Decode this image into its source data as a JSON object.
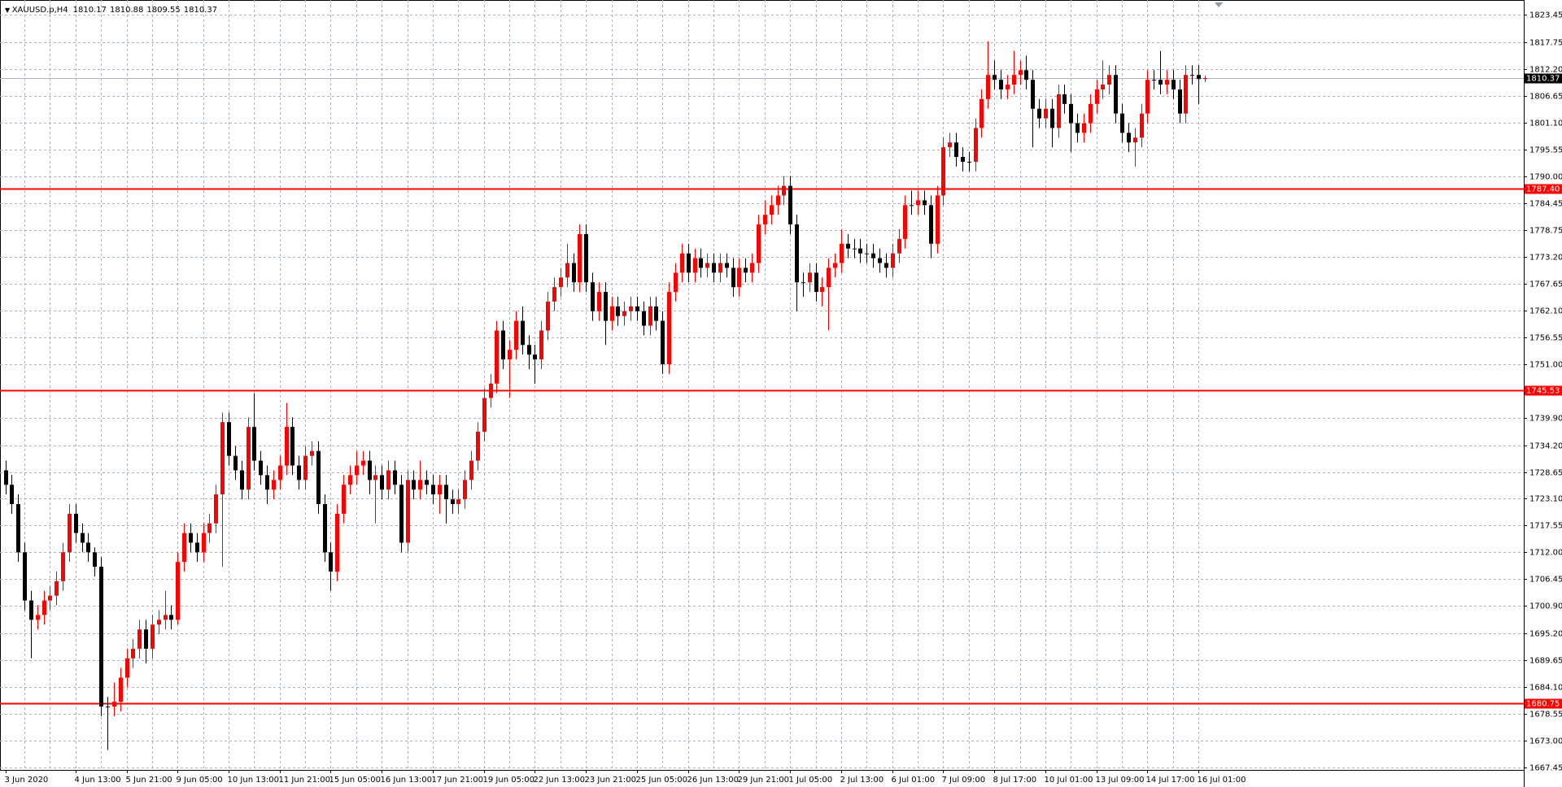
{
  "chart_data": {
    "type": "candlestick",
    "symbol": "XAUUSD.p,H4",
    "up_color": "#ff0000",
    "down_color": "#000000",
    "ylim": [
      1666.86,
      1826.55
    ],
    "yticks": [
      1823.45,
      1817.75,
      {
        "value": 1812.2,
        "label": "1812.20"
      },
      1806.65,
      {
        "value": 1801.1,
        "label": "1801.10"
      },
      1795.55,
      {
        "value": 1790,
        "label": "1790.00"
      },
      1784.45,
      1778.75,
      {
        "value": 1773.2,
        "label": "1773.20"
      },
      1767.65,
      {
        "value": 1762.1,
        "label": "1762.10"
      },
      1756.55,
      {
        "value": 1751,
        "label": "1751.00"
      },
      {
        "value": 1739.9,
        "label": "1739.90"
      },
      {
        "value": 1734.2,
        "label": "1734.20"
      },
      1728.65,
      {
        "value": 1723.1,
        "label": "1723.10"
      },
      1717.55,
      {
        "value": 1712,
        "label": "1712.00"
      },
      1706.45,
      {
        "value": 1700.9,
        "label": "1700.90"
      },
      {
        "value": 1695.2,
        "label": "1695.20"
      },
      1689.65,
      {
        "value": 1684.1,
        "label": "1684.10"
      },
      1678.55,
      {
        "value": 1673,
        "label": "1673.00"
      },
      1667.45
    ],
    "grid": true,
    "levels": [
      {
        "value": 1787.4,
        "label": "1787.40"
      },
      1745.53,
      1680.75
    ],
    "level_color": "#ff0000",
    "categories": [
      "3 Jun 2020",
      null,
      null,
      null,
      null,
      null,
      null,
      null,
      null,
      null,
      null,
      "4 Jun 13:00",
      null,
      null,
      null,
      null,
      null,
      null,
      null,
      "5 Jun 21:00",
      null,
      null,
      null,
      null,
      null,
      null,
      null,
      "9 Jun 05:00",
      null,
      null,
      null,
      null,
      null,
      null,
      null,
      "10 Jun 13:00",
      null,
      null,
      null,
      null,
      null,
      null,
      null,
      "11 Jun 21:00",
      null,
      null,
      null,
      null,
      null,
      null,
      null,
      "15 Jun 05:00",
      null,
      null,
      null,
      null,
      null,
      null,
      null,
      "16 Jun 13:00",
      null,
      null,
      null,
      null,
      null,
      null,
      null,
      "17 Jun 21:00",
      null,
      null,
      null,
      null,
      null,
      null,
      null,
      "19 Jun 05:00",
      null,
      null,
      null,
      null,
      null,
      null,
      null,
      "22 Jun 13:00",
      null,
      null,
      null,
      null,
      null,
      null,
      null,
      "23 Jun 21:00",
      null,
      null,
      null,
      null,
      null,
      null,
      null,
      "25 Jun 05:00",
      null,
      null,
      null,
      null,
      null,
      null,
      null,
      "26 Jun 13:00",
      null,
      null,
      null,
      null,
      null,
      null,
      null,
      "29 Jun 21:00",
      null,
      null,
      null,
      null,
      null,
      null,
      null,
      "1 Jul 05:00",
      null,
      null,
      null,
      null,
      null,
      null,
      null,
      "2 Jul 13:00",
      null,
      null,
      null,
      null,
      null,
      null,
      null,
      "6 Jul 01:00",
      null,
      null,
      null,
      null,
      null,
      null,
      null,
      "7 Jul 09:00",
      null,
      null,
      null,
      null,
      null,
      null,
      null,
      "8 Jul 17:00",
      null,
      null,
      null,
      null,
      null,
      null,
      null,
      "10 Jul 01:00",
      null,
      null,
      null,
      null,
      null,
      null,
      null,
      "13 Jul 09:00",
      null,
      null,
      null,
      null,
      null,
      null,
      null,
      "14 Jul 17:00",
      null,
      null,
      null,
      null,
      null,
      null,
      null,
      "16 Jul 01:00",
      null
    ],
    "candles": [
      [
        1729,
        1731,
        1724,
        1726
      ],
      [
        1726,
        1728,
        1720,
        1722
      ],
      [
        1722,
        1724,
        1710,
        1712
      ],
      [
        1712,
        1714,
        1700,
        1702
      ],
      [
        1702,
        1704,
        1690,
        1698
      ],
      [
        1698,
        1701,
        1696,
        1699
      ],
      [
        1699,
        1704,
        1697,
        1702
      ],
      [
        1702,
        1705,
        1700,
        1703
      ],
      [
        1703,
        1708,
        1701,
        1706
      ],
      [
        1706,
        1714,
        1704,
        1712
      ],
      [
        1712,
        1722,
        1710,
        1720
      ],
      [
        1720,
        1722,
        1714,
        1716
      ],
      [
        1716,
        1718,
        1712,
        1714
      ],
      [
        1714,
        1716,
        1710,
        1712
      ],
      [
        1712,
        1713,
        1707,
        1709
      ],
      [
        1709,
        1711,
        1678,
        1680
      ],
      [
        1680,
        1682,
        1671,
        1680
      ],
      [
        1680,
        1685,
        1678,
        1681
      ],
      [
        1681,
        1688,
        1679,
        1686
      ],
      [
        1686,
        1692,
        1684,
        1690
      ],
      [
        1690,
        1694,
        1688,
        1692
      ],
      [
        1692,
        1698,
        1690,
        1696
      ],
      [
        1696,
        1698,
        1689,
        1692
      ],
      [
        1692,
        1699,
        1690,
        1697
      ],
      [
        1697,
        1700,
        1695,
        1698
      ],
      [
        1698,
        1704,
        1696,
        1699
      ],
      [
        1699,
        1701,
        1696,
        1698
      ],
      [
        1698,
        1712,
        1697,
        1710
      ],
      [
        1710,
        1718,
        1708,
        1716
      ],
      [
        1716,
        1718,
        1712,
        1714
      ],
      [
        1714,
        1716,
        1710,
        1712
      ],
      [
        1712,
        1718,
        1710,
        1716
      ],
      [
        1716,
        1720,
        1714,
        1718
      ],
      [
        1718,
        1726,
        1716,
        1724
      ],
      [
        1724,
        1741,
        1709,
        1739
      ],
      [
        1739,
        1741,
        1730,
        1732
      ],
      [
        1732,
        1734,
        1727,
        1729
      ],
      [
        1729,
        1731,
        1723,
        1725
      ],
      [
        1725,
        1740,
        1723,
        1738
      ],
      [
        1738,
        1745,
        1729,
        1731
      ],
      [
        1731,
        1733,
        1726,
        1728
      ],
      [
        1728,
        1730,
        1722,
        1725
      ],
      [
        1725,
        1729,
        1723,
        1727
      ],
      [
        1727,
        1732,
        1725,
        1730
      ],
      [
        1730,
        1743,
        1728,
        1738
      ],
      [
        1738,
        1740,
        1728,
        1730
      ],
      [
        1730,
        1732,
        1725,
        1727
      ],
      [
        1727,
        1734,
        1725,
        1732
      ],
      [
        1732,
        1735,
        1730,
        1733
      ],
      [
        1733,
        1735,
        1720,
        1722
      ],
      [
        1722,
        1724,
        1710,
        1712
      ],
      [
        1712,
        1714,
        1704,
        1708
      ],
      [
        1708,
        1722,
        1706,
        1720
      ],
      [
        1720,
        1728,
        1718,
        1726
      ],
      [
        1726,
        1730,
        1724,
        1728
      ],
      [
        1728,
        1733,
        1726,
        1730
      ],
      [
        1730,
        1733,
        1728,
        1731
      ],
      [
        1731,
        1733,
        1724,
        1727
      ],
      [
        1727,
        1730,
        1718,
        1728
      ],
      [
        1728,
        1730,
        1723,
        1725
      ],
      [
        1725,
        1731,
        1723,
        1729
      ],
      [
        1729,
        1731,
        1724,
        1726
      ],
      [
        1726,
        1728,
        1712,
        1714
      ],
      [
        1714,
        1729,
        1712,
        1727
      ],
      [
        1727,
        1729,
        1723,
        1725
      ],
      [
        1725,
        1731,
        1723,
        1727
      ],
      [
        1727,
        1729,
        1724,
        1726
      ],
      [
        1726,
        1728,
        1722,
        1724
      ],
      [
        1724,
        1728,
        1720,
        1726
      ],
      [
        1726,
        1728,
        1718,
        1723
      ],
      [
        1723,
        1725,
        1720,
        1722
      ],
      [
        1722,
        1725,
        1720,
        1723
      ],
      [
        1723,
        1729,
        1721,
        1727
      ],
      [
        1727,
        1733,
        1725,
        1731
      ],
      [
        1731,
        1739,
        1729,
        1737
      ],
      [
        1737,
        1746,
        1735,
        1744
      ],
      [
        1744,
        1749,
        1742,
        1747
      ],
      [
        1747,
        1760,
        1745,
        1758
      ],
      [
        1758,
        1760,
        1750,
        1752
      ],
      [
        1752,
        1756,
        1744,
        1754
      ],
      [
        1754,
        1762,
        1752,
        1760
      ],
      [
        1760,
        1763,
        1753,
        1755
      ],
      [
        1755,
        1757,
        1750,
        1753
      ],
      [
        1753,
        1755,
        1747,
        1752
      ],
      [
        1752,
        1760,
        1750,
        1758
      ],
      [
        1758,
        1766,
        1756,
        1764
      ],
      [
        1764,
        1769,
        1762,
        1767
      ],
      [
        1767,
        1771,
        1765,
        1769
      ],
      [
        1769,
        1776,
        1767,
        1772
      ],
      [
        1772,
        1774,
        1766,
        1768
      ],
      [
        1768,
        1780,
        1766,
        1778
      ],
      [
        1778,
        1780,
        1766,
        1768
      ],
      [
        1768,
        1770,
        1760,
        1762
      ],
      [
        1762,
        1768,
        1760,
        1766
      ],
      [
        1766,
        1768,
        1755,
        1760
      ],
      [
        1760,
        1765,
        1758,
        1763
      ],
      [
        1763,
        1765,
        1759,
        1761
      ],
      [
        1761,
        1764,
        1759,
        1762
      ],
      [
        1762,
        1765,
        1760,
        1763
      ],
      [
        1763,
        1765,
        1760,
        1762
      ],
      [
        1762,
        1764,
        1757,
        1759
      ],
      [
        1759,
        1765,
        1757,
        1763
      ],
      [
        1763,
        1765,
        1758,
        1760
      ],
      [
        1760,
        1762,
        1749,
        1751
      ],
      [
        1751,
        1768,
        1749,
        1766
      ],
      [
        1766,
        1772,
        1764,
        1770
      ],
      [
        1770,
        1776,
        1768,
        1774
      ],
      [
        1774,
        1776,
        1768,
        1770
      ],
      [
        1770,
        1775,
        1768,
        1773
      ],
      [
        1773,
        1775,
        1769,
        1771
      ],
      [
        1771,
        1774,
        1769,
        1772
      ],
      [
        1772,
        1774,
        1768,
        1770
      ],
      [
        1770,
        1774,
        1768,
        1772
      ],
      [
        1772,
        1774,
        1769,
        1771
      ],
      [
        1771,
        1773,
        1765,
        1767
      ],
      [
        1767,
        1773,
        1765,
        1771
      ],
      [
        1771,
        1773,
        1768,
        1770
      ],
      [
        1770,
        1774,
        1768,
        1772
      ],
      [
        1772,
        1782,
        1770,
        1780
      ],
      [
        1780,
        1785,
        1778,
        1782
      ],
      [
        1782,
        1786,
        1780,
        1784
      ],
      [
        1784,
        1788,
        1782,
        1786
      ],
      [
        1786,
        1790,
        1784,
        1788
      ],
      [
        1788,
        1790,
        1778,
        1780
      ],
      [
        1780,
        1782,
        1762,
        1768
      ],
      [
        1768,
        1770,
        1765,
        1768
      ],
      [
        1768,
        1772,
        1766,
        1770
      ],
      [
        1770,
        1772,
        1764,
        1766
      ],
      [
        1766,
        1769,
        1763,
        1767
      ],
      [
        1767,
        1773,
        1758,
        1771
      ],
      [
        1771,
        1774,
        1769,
        1772
      ],
      [
        1772,
        1779,
        1770,
        1776
      ],
      [
        1776,
        1778,
        1773,
        1775
      ],
      [
        1775,
        1777,
        1773,
        1775
      ],
      [
        1775,
        1777,
        1772,
        1774
      ],
      [
        1774,
        1776,
        1772,
        1774
      ],
      [
        1774,
        1776,
        1771,
        1773
      ],
      [
        1773,
        1775,
        1770,
        1772
      ],
      [
        1772,
        1774,
        1769,
        1771
      ],
      [
        1771,
        1776,
        1769,
        1774
      ],
      [
        1774,
        1779,
        1772,
        1777
      ],
      [
        1777,
        1786,
        1775,
        1784
      ],
      [
        1784,
        1787,
        1782,
        1784
      ],
      [
        1784,
        1787,
        1782,
        1785
      ],
      [
        1785,
        1787,
        1782,
        1784
      ],
      [
        1784,
        1786,
        1773,
        1776
      ],
      [
        1776,
        1788,
        1774,
        1786
      ],
      [
        1786,
        1798,
        1784,
        1796
      ],
      [
        1796,
        1799,
        1794,
        1797
      ],
      [
        1797,
        1799,
        1792,
        1794
      ],
      [
        1794,
        1796,
        1791,
        1793
      ],
      [
        1793,
        1795,
        1791,
        1793
      ],
      [
        1793,
        1802,
        1791,
        1800
      ],
      [
        1800,
        1808,
        1798,
        1806
      ],
      [
        1806,
        1818,
        1804,
        1811
      ],
      [
        1811,
        1814,
        1808,
        1810
      ],
      [
        1810,
        1812,
        1806,
        1808
      ],
      [
        1808,
        1811,
        1806,
        1809
      ],
      [
        1809,
        1816,
        1807,
        1811
      ],
      [
        1811,
        1814,
        1809,
        1812
      ],
      [
        1812,
        1815,
        1808,
        1810
      ],
      [
        1810,
        1812,
        1796,
        1804
      ],
      [
        1804,
        1806,
        1800,
        1802
      ],
      [
        1802,
        1806,
        1800,
        1804
      ],
      [
        1804,
        1806,
        1796,
        1800
      ],
      [
        1800,
        1809,
        1798,
        1807
      ],
      [
        1807,
        1809,
        1803,
        1805
      ],
      [
        1805,
        1807,
        1795,
        1801
      ],
      [
        1801,
        1803,
        1797,
        1799
      ],
      [
        1799,
        1803,
        1797,
        1801
      ],
      [
        1801,
        1807,
        1799,
        1805
      ],
      [
        1805,
        1810,
        1803,
        1808
      ],
      [
        1808,
        1814,
        1806,
        1809
      ],
      [
        1809,
        1813,
        1807,
        1811
      ],
      [
        1811,
        1813,
        1801,
        1803
      ],
      [
        1803,
        1805,
        1797,
        1799
      ],
      [
        1799,
        1801,
        1795,
        1797
      ],
      [
        1797,
        1800,
        1792,
        1798
      ],
      [
        1798,
        1805,
        1796,
        1803
      ],
      [
        1803,
        1812,
        1801,
        1810
      ],
      [
        1810,
        1812,
        1808,
        1810
      ],
      [
        1810,
        1816,
        1807,
        1809
      ],
      [
        1809,
        1812,
        1807,
        1810
      ],
      [
        1810,
        1812,
        1806,
        1808
      ],
      [
        1808,
        1810,
        1801,
        1803
      ],
      [
        1803,
        1813,
        1801,
        1811
      ],
      [
        1811,
        1813,
        1809,
        1811
      ],
      [
        1811,
        1813,
        1805,
        1810.17
      ],
      [
        1810.17,
        1810.88,
        1809.55,
        1810.37
      ]
    ]
  }
}
